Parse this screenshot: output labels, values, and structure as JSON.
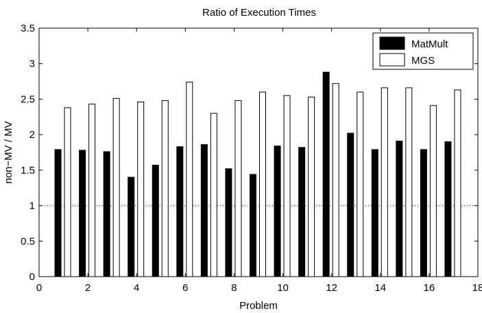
{
  "chart_data": {
    "type": "bar",
    "title": "Ratio of Execution Times",
    "xlabel": "Problem",
    "ylabel": "non−MV / MV",
    "xlim": [
      0,
      18
    ],
    "ylim": [
      0,
      3.5
    ],
    "x_ticks": [
      "0",
      "2",
      "4",
      "6",
      "8",
      "10",
      "12",
      "14",
      "16",
      "18"
    ],
    "y_ticks": [
      "0",
      "0.5",
      "1",
      "1.5",
      "2",
      "2.5",
      "3",
      "3.5"
    ],
    "reference_line": 1,
    "grid": false,
    "legend_position": "top-right",
    "x": [
      1,
      2,
      3,
      4,
      5,
      6,
      7,
      8,
      9,
      10,
      11,
      12,
      13,
      14,
      15,
      16,
      17
    ],
    "series": [
      {
        "name": "MatMult",
        "color": "#000000",
        "values": [
          1.79,
          1.78,
          1.76,
          1.4,
          1.57,
          1.83,
          1.86,
          1.52,
          1.44,
          1.84,
          1.82,
          2.88,
          2.02,
          1.79,
          1.91,
          1.79,
          1.9
        ]
      },
      {
        "name": "MGS",
        "color": "#ffffff",
        "values": [
          2.38,
          2.43,
          2.51,
          2.46,
          2.48,
          2.74,
          2.3,
          2.48,
          2.6,
          2.55,
          2.53,
          2.72,
          2.6,
          2.66,
          2.66,
          2.41,
          2.63
        ]
      }
    ]
  }
}
